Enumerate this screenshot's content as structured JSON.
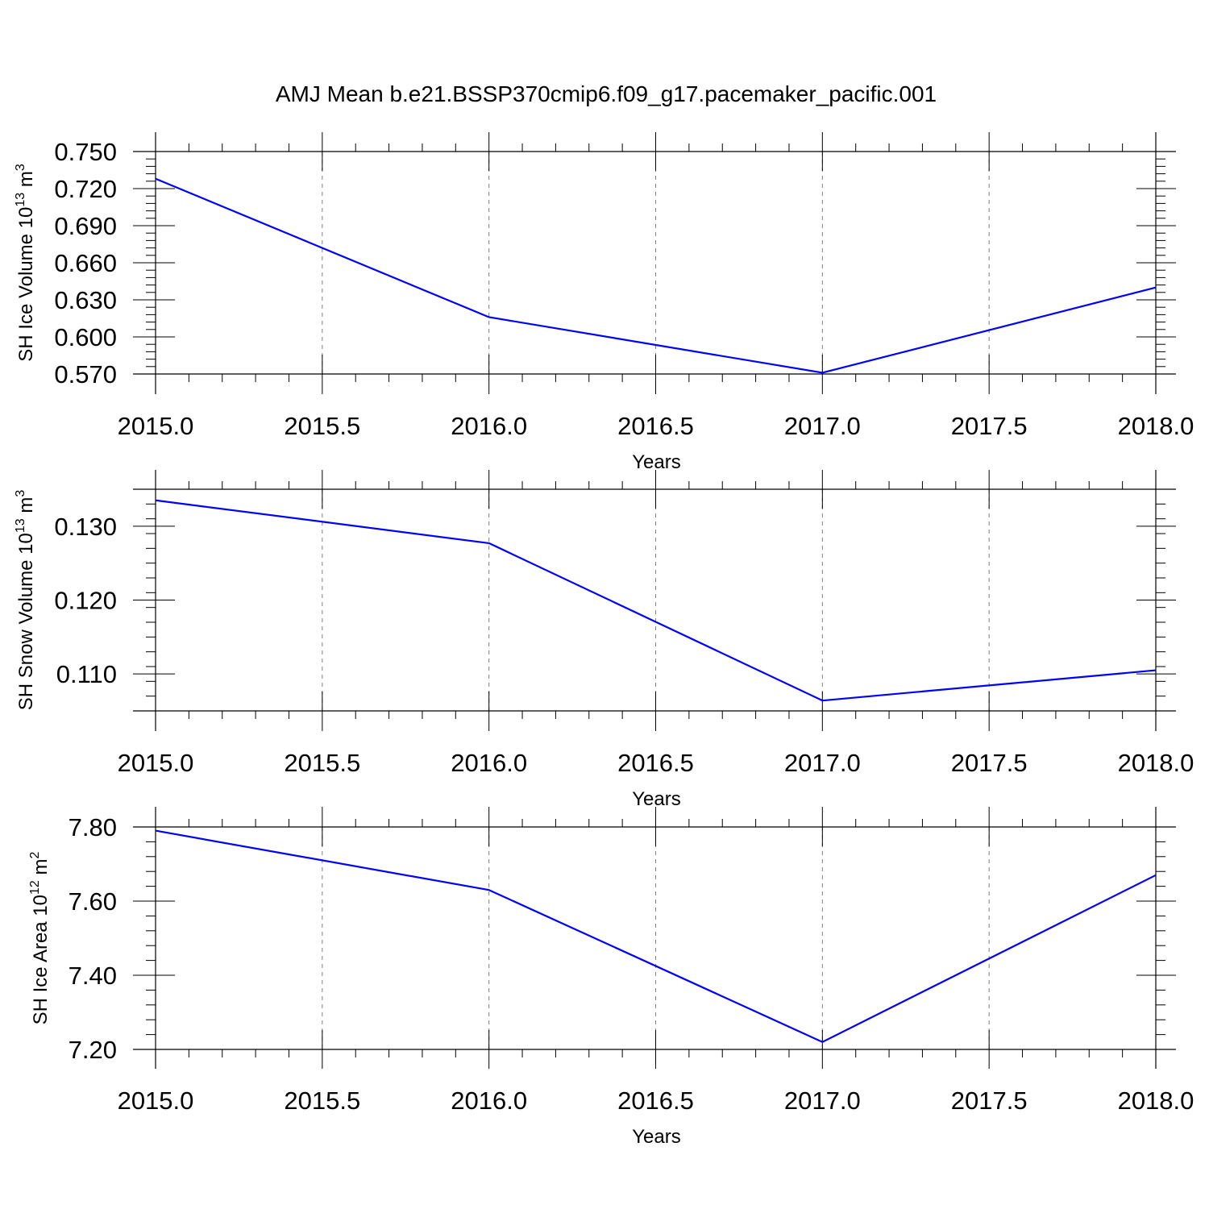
{
  "figure": {
    "title": "AMJ Mean b.e21.BSSP370cmip6.f09_g17.pacemaker_pacific.001",
    "line_color": "#0000ff",
    "grid_color": "#808080",
    "frame_color": "#000000"
  },
  "chart_data": [
    {
      "type": "line",
      "xlabel": "Years",
      "ylabel": {
        "text": "SH Ice Volume 10",
        "sup1": "13",
        "mid": " m",
        "sup2": "3"
      },
      "x": [
        2015,
        2016,
        2017,
        2018
      ],
      "series": [
        {
          "values": [
            0.728,
            0.616,
            0.571,
            0.64
          ]
        }
      ],
      "xlim": [
        2015,
        2018
      ],
      "xticks": [
        2015.0,
        2015.5,
        2016.0,
        2016.5,
        2017.0,
        2017.5,
        2018.0
      ],
      "xtick_labels": [
        "2015.0",
        "2015.5",
        "2016.0",
        "2016.5",
        "2017.0",
        "2017.5",
        "2018.0"
      ],
      "ylim": [
        0.57,
        0.75
      ],
      "yticks": [
        0.57,
        0.6,
        0.63,
        0.66,
        0.69,
        0.72,
        0.75
      ],
      "ytick_labels": [
        "0.570",
        "0.600",
        "0.630",
        "0.660",
        "0.690",
        "0.720",
        "0.750"
      ],
      "grid": "vertical dashed at x ticks"
    },
    {
      "type": "line",
      "xlabel": "Years",
      "ylabel": {
        "text": "SH Snow Volume 10",
        "sup1": "13",
        "mid": " m",
        "sup2": "3"
      },
      "x": [
        2015,
        2016,
        2017,
        2018
      ],
      "series": [
        {
          "values": [
            0.1335,
            0.1277,
            0.1064,
            0.1105
          ]
        }
      ],
      "xlim": [
        2015,
        2018
      ],
      "xticks": [
        2015.0,
        2015.5,
        2016.0,
        2016.5,
        2017.0,
        2017.5,
        2018.0
      ],
      "xtick_labels": [
        "2015.0",
        "2015.5",
        "2016.0",
        "2016.5",
        "2017.0",
        "2017.5",
        "2018.0"
      ],
      "ylim": [
        0.105,
        0.135
      ],
      "yticks": [
        0.11,
        0.12,
        0.13
      ],
      "ytick_labels": [
        "0.110",
        "0.120",
        "0.130"
      ],
      "grid": "vertical dashed at x ticks"
    },
    {
      "type": "line",
      "xlabel": "Years",
      "ylabel": {
        "text": "SH Ice Area 10",
        "sup1": "12",
        "mid": " m",
        "sup2": "2"
      },
      "x": [
        2015,
        2016,
        2017,
        2018
      ],
      "series": [
        {
          "values": [
            7.79,
            7.63,
            7.22,
            7.67
          ]
        }
      ],
      "xlim": [
        2015,
        2018
      ],
      "xticks": [
        2015.0,
        2015.5,
        2016.0,
        2016.5,
        2017.0,
        2017.5,
        2018.0
      ],
      "xtick_labels": [
        "2015.0",
        "2015.5",
        "2016.0",
        "2016.5",
        "2017.0",
        "2017.5",
        "2018.0"
      ],
      "ylim": [
        7.2,
        7.8
      ],
      "yticks": [
        7.2,
        7.4,
        7.6,
        7.8
      ],
      "ytick_labels": [
        "7.20",
        "7.40",
        "7.60",
        "7.80"
      ],
      "grid": "vertical dashed at x ticks"
    }
  ]
}
